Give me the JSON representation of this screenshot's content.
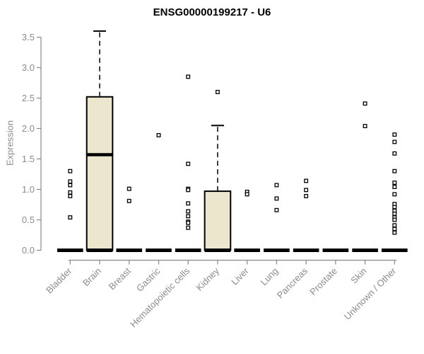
{
  "chart_data": {
    "type": "boxplot",
    "title": "ENSG00000199217 - U6",
    "ylabel": "Expression",
    "xlabel": "",
    "ylim": [
      0,
      3.5
    ],
    "yticks": [
      0.0,
      0.5,
      1.0,
      1.5,
      2.0,
      2.5,
      3.0,
      3.5
    ],
    "grid": false,
    "legend": false,
    "categories": [
      "Bladder",
      "Brain",
      "Breast",
      "Gastric",
      "Hematopoietic cells",
      "Kidney",
      "Liver",
      "Lung",
      "Pancreas",
      "Prostate",
      "Skin",
      "Unknown / Other"
    ],
    "boxes": [
      {
        "category": "Bladder",
        "q1": 0,
        "median": 0,
        "q3": 0,
        "whisker_low": 0,
        "whisker_high": 0,
        "outliers": [
          1.3,
          1.13,
          1.07,
          0.95,
          0.89,
          0.54
        ]
      },
      {
        "category": "Brain",
        "q1": 0,
        "median": 1.57,
        "q3": 2.52,
        "whisker_low": 0,
        "whisker_high": 3.6,
        "outliers": []
      },
      {
        "category": "Breast",
        "q1": 0,
        "median": 0,
        "q3": 0,
        "whisker_low": 0,
        "whisker_high": 0,
        "outliers": [
          1.01,
          0.81
        ]
      },
      {
        "category": "Gastric",
        "q1": 0,
        "median": 0,
        "q3": 0,
        "whisker_low": 0,
        "whisker_high": 0,
        "outliers": [
          1.89
        ]
      },
      {
        "category": "Hematopoietic cells",
        "q1": 0,
        "median": 0,
        "q3": 0,
        "whisker_low": 0,
        "whisker_high": 0,
        "outliers": [
          2.85,
          1.42,
          1.01,
          0.99,
          0.77,
          0.64,
          0.56,
          0.47,
          0.45,
          0.37
        ]
      },
      {
        "category": "Kidney",
        "q1": 0,
        "median": 0,
        "q3": 0.97,
        "whisker_low": 0,
        "whisker_high": 2.05,
        "outliers": [
          2.6
        ]
      },
      {
        "category": "Liver",
        "q1": 0,
        "median": 0,
        "q3": 0,
        "whisker_low": 0,
        "whisker_high": 0,
        "outliers": [
          0.96,
          0.92
        ]
      },
      {
        "category": "Lung",
        "q1": 0,
        "median": 0,
        "q3": 0,
        "whisker_low": 0,
        "whisker_high": 0,
        "outliers": [
          1.07,
          0.85,
          0.66
        ]
      },
      {
        "category": "Pancreas",
        "q1": 0,
        "median": 0,
        "q3": 0,
        "whisker_low": 0,
        "whisker_high": 0,
        "outliers": [
          1.14,
          0.99,
          0.89
        ]
      },
      {
        "category": "Prostate",
        "q1": 0,
        "median": 0,
        "q3": 0,
        "whisker_low": 0,
        "whisker_high": 0,
        "outliers": []
      },
      {
        "category": "Skin",
        "q1": 0,
        "median": 0,
        "q3": 0,
        "whisker_low": 0,
        "whisker_high": 0,
        "outliers": [
          2.41,
          2.04
        ]
      },
      {
        "category": "Unknown / Other",
        "q1": 0,
        "median": 0,
        "q3": 0,
        "whisker_low": 0,
        "whisker_high": 0,
        "outliers": [
          1.9,
          1.78,
          1.59,
          1.3,
          1.11,
          1.04,
          0.92,
          0.76,
          0.71,
          0.65,
          0.6,
          0.54,
          0.5,
          0.41,
          0.35,
          0.29
        ]
      }
    ],
    "colors": {
      "box_fill": "#EDE6CE",
      "box_border": "#000000",
      "median": "#000000",
      "zero_bar": "#000000",
      "whisker": "#000000",
      "point_border": "#000000",
      "point_fill": "#FFFFFF",
      "axis": "#888888",
      "tick_label": "#8C8C8C",
      "title": "#000000"
    }
  }
}
